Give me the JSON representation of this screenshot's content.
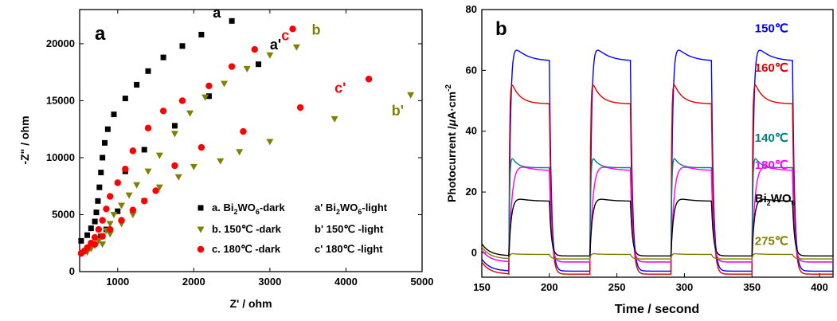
{
  "chart_data": [
    {
      "type": "scatter",
      "panel_label": "a",
      "xlabel": "Z' / ohm",
      "ylabel": "-Z\" / ohm",
      "xlim": [
        500,
        5000
      ],
      "ylim": [
        0,
        23000
      ],
      "xticks": [
        1000,
        2000,
        3000,
        4000,
        5000
      ],
      "yticks": [
        0,
        5000,
        10000,
        15000,
        20000
      ],
      "legend_left": [
        {
          "id": "dark-bi",
          "prefix": "a. Bi",
          "sub1": "2",
          "mid": "WO",
          "sub2": "6",
          "suffix": "-dark",
          "color": "#000000",
          "marker": "square"
        },
        {
          "id": "dark-150",
          "prefix": "b. 150℃ -dark",
          "color": "#808000",
          "marker": "triangle-down"
        },
        {
          "id": "dark-180",
          "prefix": "c. 180℃ -dark",
          "color": "#ff0000",
          "marker": "circle"
        }
      ],
      "legend_right": [
        {
          "prefix": "a' Bi",
          "sub1": "2",
          "mid": "WO",
          "sub2": "6",
          "suffix": "-light"
        },
        {
          "prefix": "b' 150℃ -light"
        },
        {
          "prefix": "c' 180℃ -light"
        }
      ],
      "annotations": [
        {
          "text": "a",
          "x": 2250,
          "y": 22300,
          "color": "#000000"
        },
        {
          "text": "a'",
          "x": 3000,
          "y": 19500,
          "color": "#000000"
        },
        {
          "text": "c",
          "x": 3150,
          "y": 20300,
          "color": "#ff0000"
        },
        {
          "text": "b",
          "x": 3550,
          "y": 20800,
          "color": "#808000"
        },
        {
          "text": "c'",
          "x": 3850,
          "y": 15700,
          "color": "#ff0000"
        },
        {
          "text": "b'",
          "x": 4600,
          "y": 13700,
          "color": "#808000"
        }
      ],
      "series": [
        {
          "id": "a-dark",
          "color": "#000000",
          "marker": "square",
          "x": [
            520,
            600,
            650,
            700,
            720,
            740,
            760,
            780,
            800,
            830,
            870,
            950,
            1100,
            1250,
            1400,
            1600,
            1850,
            2100,
            2500
          ],
          "y": [
            2700,
            3200,
            3800,
            4400,
            5200,
            6200,
            7400,
            8700,
            10000,
            11300,
            12500,
            13800,
            15200,
            16400,
            17600,
            18800,
            19800,
            20800,
            22000
          ]
        },
        {
          "id": "a-light",
          "color": "#000000",
          "marker": "square",
          "x": [
            780,
            850,
            1000,
            1100,
            1350,
            1750,
            2200,
            2850
          ],
          "y": [
            3100,
            3700,
            5300,
            8800,
            10700,
            12800,
            15400,
            18200
          ]
        },
        {
          "id": "b-dark",
          "color": "#808000",
          "marker": "triangle-down",
          "x": [
            600,
            650,
            700,
            750,
            800,
            850,
            900,
            950,
            1050,
            1150,
            1250,
            1400,
            1550,
            1750,
            1950,
            2150,
            2400,
            2700,
            3000,
            3350
          ],
          "y": [
            1700,
            2000,
            2300,
            2700,
            3100,
            3600,
            4200,
            5000,
            5800,
            6700,
            7600,
            8800,
            10200,
            12100,
            13900,
            15300,
            16500,
            17800,
            19000,
            19700
          ]
        },
        {
          "id": "b-light",
          "color": "#808000",
          "marker": "triangle-down",
          "x": [
            800,
            900,
            1050,
            1200,
            1350,
            1550,
            1800,
            2000,
            2350,
            2600,
            3000,
            3850,
            4850
          ],
          "y": [
            2400,
            3300,
            4200,
            5000,
            6200,
            7400,
            8300,
            9200,
            9700,
            10500,
            11400,
            13400,
            15500
          ]
        },
        {
          "id": "c-dark",
          "color": "#ff0000",
          "marker": "circle",
          "x": [
            520,
            560,
            600,
            650,
            700,
            750,
            800,
            850,
            900,
            1000,
            1100,
            1200,
            1400,
            1600,
            1850,
            2200,
            2500,
            2800,
            3300
          ],
          "y": [
            1600,
            1800,
            2100,
            2500,
            3000,
            3700,
            4500,
            5500,
            6600,
            7800,
            9000,
            10600,
            12600,
            14100,
            15000,
            16300,
            18000,
            19500,
            21300
          ]
        },
        {
          "id": "c-light",
          "color": "#ff0000",
          "marker": "circle",
          "x": [
            700,
            800,
            900,
            1050,
            1200,
            1350,
            1500,
            1750,
            2100,
            2650,
            3400,
            4300
          ],
          "y": [
            2400,
            3100,
            3700,
            4500,
            5400,
            6200,
            7100,
            9300,
            10900,
            12300,
            14400,
            16900
          ]
        }
      ]
    },
    {
      "type": "line",
      "panel_label": "b",
      "xlabel": "Time / second",
      "ylabel_prefix": "Photocurrent /",
      "ylabel_mu": "μ",
      "ylabel_rest": "A·cm",
      "ylabel_sup": "-2",
      "xlim": [
        150,
        410
      ],
      "ylim": [
        -8,
        80
      ],
      "xticks": [
        150,
        200,
        250,
        300,
        350,
        400
      ],
      "yticks": [
        0,
        20,
        40,
        60,
        80
      ],
      "on_intervals": [
        [
          170,
          200
        ],
        [
          230,
          260
        ],
        [
          290,
          320
        ],
        [
          350,
          380
        ]
      ],
      "series": [
        {
          "id": "s150",
          "label": "150℃",
          "color": "#0000ff",
          "dark": -6,
          "peak": 71,
          "plateau": 63,
          "rise": 1.2,
          "decay": 9,
          "lx": 358,
          "ly": 71
        },
        {
          "id": "s160",
          "label": "160℃",
          "color": "#dd0000",
          "dark": -7,
          "peak": 59,
          "plateau": 49,
          "rise": 0.5,
          "decay": 6,
          "lx": 358,
          "ly": 58
        },
        {
          "id": "s140",
          "label": "140℃",
          "color": "#008080",
          "dark": -3,
          "peak": 34.5,
          "plateau": 28,
          "rise": 0.6,
          "decay": 4,
          "lx": 358,
          "ly": 35
        },
        {
          "id": "s180",
          "label": "180℃",
          "color": "#ff00ff",
          "dark": -3,
          "peak": 33,
          "plateau": 27,
          "rise": 2.5,
          "decay": 8,
          "lx": 358,
          "ly": 26
        },
        {
          "id": "sbi",
          "label_prefix": "Bi",
          "label_sub1": "2",
          "label_mid": "WO",
          "label_sub2": "6",
          "color": "#000000",
          "dark": -1,
          "peak": 20,
          "plateau": 17,
          "rise": 2.0,
          "decay": 7,
          "lx": 358,
          "ly": 15
        },
        {
          "id": "s275",
          "label": "275℃",
          "color": "#808000",
          "dark": -2,
          "peak": 0,
          "plateau": -0.5,
          "rise": 0.8,
          "decay": 4,
          "lx": 358,
          "ly": 1
        }
      ]
    }
  ]
}
